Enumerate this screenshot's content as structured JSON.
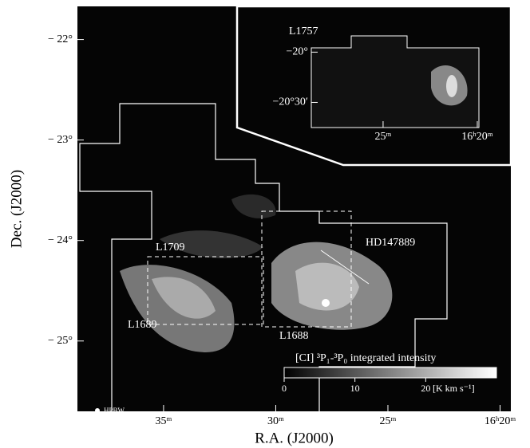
{
  "chart_data": [
    {
      "type": "map",
      "xlabel": "R.A. (J2000)",
      "ylabel": "Dec. (J2000)",
      "xlim": [
        38.84,
        19.52
      ],
      "ylim": [
        -25.7,
        -21.67
      ],
      "xticks": [
        {
          "value": 35,
          "label": "35ᵐ"
        },
        {
          "value": 30,
          "label": "30ᵐ"
        },
        {
          "value": 25,
          "label": "25ᵐ"
        },
        {
          "value": 20,
          "label": "16ʰ20ᵐ"
        }
      ],
      "yticks": [
        {
          "value": -22,
          "label": "− 22°"
        },
        {
          "value": -23,
          "label": "− 23°"
        },
        {
          "value": -24,
          "label": "− 24°"
        },
        {
          "value": -25,
          "label": "− 25°"
        }
      ],
      "annotations": [
        "L1709",
        "L1689",
        "L1688",
        "HD147889",
        "HPBW"
      ],
      "colorbar": {
        "label": "[CI] ³P₁-³P₀ integrated intensity",
        "lim": [
          0,
          30
        ],
        "ticks": [
          0,
          10,
          20
        ],
        "unit": "[K km s⁻¹]"
      }
    },
    {
      "type": "map",
      "xlim": [
        28.81,
        18.22
      ],
      "ylim": [
        -20.75,
        -19.64
      ],
      "xticks": [
        {
          "value": 25,
          "label": "25ᵐ"
        },
        {
          "value": 20,
          "label": "16ʰ20ᵐ"
        }
      ],
      "yticks": [
        {
          "value": -20,
          "label": "−20°"
        },
        {
          "value": -20.5,
          "label": "−20°30′"
        }
      ],
      "annotations": [
        "L1757"
      ]
    }
  ]
}
